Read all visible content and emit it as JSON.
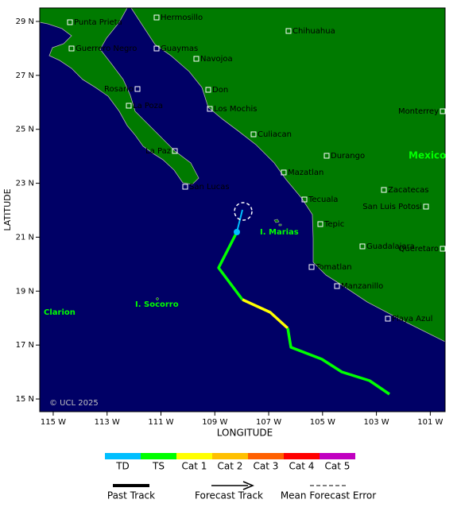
{
  "map": {
    "xlabel": "LONGITUDE",
    "ylabel": "LATITUDE",
    "xlim": [
      -115.5,
      -100.45
    ],
    "ylim": [
      14.53,
      29.5
    ],
    "xticks": [
      {
        "value": -115,
        "label": "115 W"
      },
      {
        "value": -113,
        "label": "113 W"
      },
      {
        "value": -111,
        "label": "111 W"
      },
      {
        "value": -109,
        "label": "109 W"
      },
      {
        "value": -107,
        "label": "107 W"
      },
      {
        "value": -105,
        "label": "105 W"
      },
      {
        "value": -103,
        "label": "103 W"
      },
      {
        "value": -101,
        "label": "101 W"
      }
    ],
    "yticks": [
      {
        "value": 29,
        "label": "29 N"
      },
      {
        "value": 27,
        "label": "27 N"
      },
      {
        "value": 25,
        "label": "25 N"
      },
      {
        "value": 23,
        "label": "23 N"
      },
      {
        "value": 21,
        "label": "21 N"
      },
      {
        "value": 19,
        "label": "19 N"
      },
      {
        "value": 17,
        "label": "17 N"
      },
      {
        "value": 15,
        "label": "15 N"
      }
    ],
    "cities": [
      "Punta Prieta",
      "Hermosillo",
      "Guerrero Negro",
      "Guaymas",
      "Chihuahua",
      "Navojoa",
      "Rosario",
      "Don",
      "La Poza",
      "Los Mochis",
      "Monterrey",
      "Culiacan",
      "La Paz",
      "Durango",
      "Mazatlan",
      "San Lucas",
      "Zacatecas",
      "Tecuala",
      "San Luis Potosi",
      "Tepic",
      "Guadalajara",
      "Queretaro",
      "Tomatlan",
      "Manzanillo",
      "Playa Azul"
    ],
    "regions": [
      "Mexico",
      "I. Marias",
      "I. Socorro",
      "Clarion"
    ],
    "copyright": "© UCL 2025"
  },
  "legend": {
    "categories": [
      "TD",
      "TS",
      "Cat 1",
      "Cat 2",
      "Cat 3",
      "Cat 4",
      "Cat 5"
    ],
    "colors": [
      "#00bfff",
      "#00ff00",
      "#ffff00",
      "#ffc000",
      "#ff6000",
      "#ff0000",
      "#c000c0"
    ],
    "tracks": [
      "Past Track",
      "Forecast Track",
      "Mean Forecast Error"
    ]
  }
}
